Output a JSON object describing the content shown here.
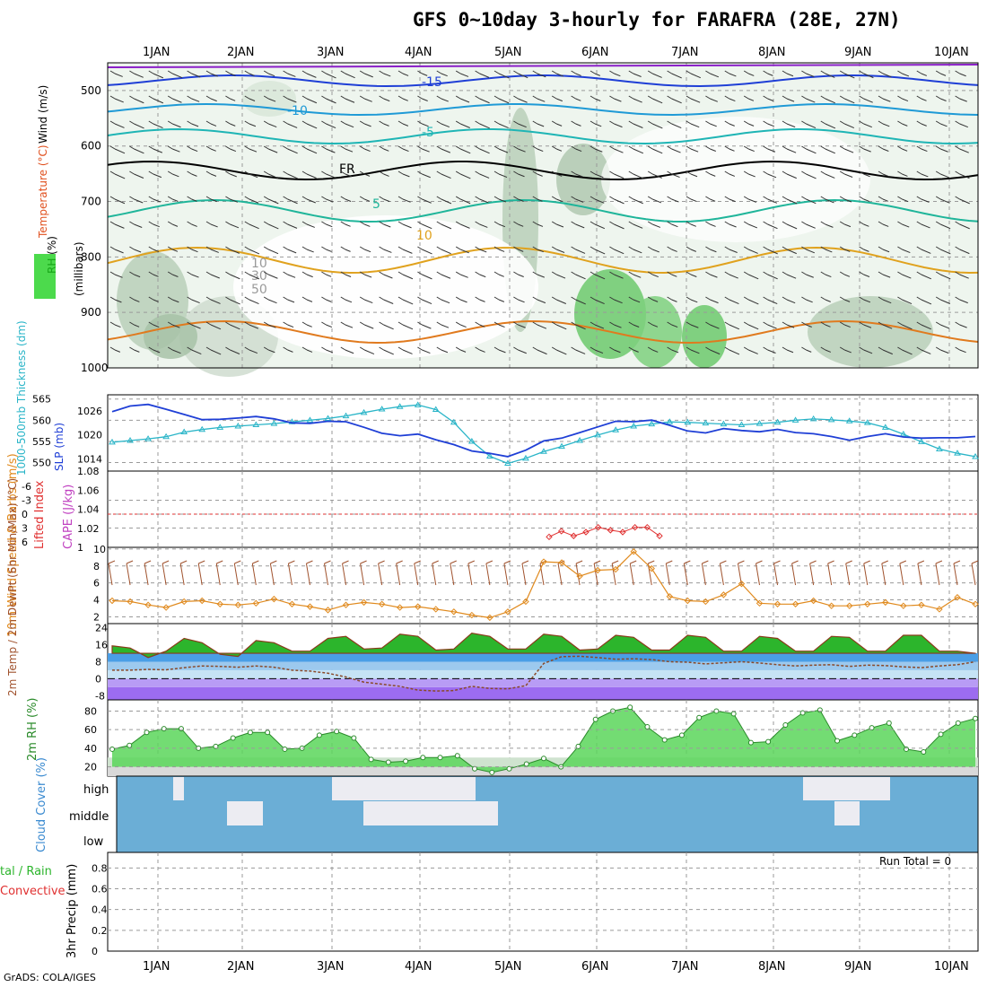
{
  "header": {
    "title": "GFS 0~10day 3-hourly for FARAFRA (28E, 27N)",
    "credit": "GrADS: COLA/IGES"
  },
  "colors": {
    "bg": "#ffffff",
    "rh_green": "#1fd11f",
    "temp_orange": "#e08a1e",
    "wind_brown": "#a0522d",
    "cloud_blue": "#6baed6",
    "slp_blue": "#1f3fd6",
    "thickness_cyan": "#2ab5c8"
  },
  "chart_data": [
    {
      "panel": "upper-air",
      "type": "heatmap",
      "x_dates": [
        "1JAN",
        "2JAN",
        "3JAN",
        "4JAN",
        "5JAN",
        "6JAN",
        "7JAN",
        "8JAN",
        "9JAN",
        "10JAN"
      ],
      "ylabel": "(millibars)",
      "y_ticks": [
        500,
        600,
        700,
        800,
        900,
        1000
      ],
      "ylim": [
        1000,
        450
      ],
      "axis_label_legend": [
        "RH (%)",
        "Temperature (°C)",
        "Wind (m/s)"
      ],
      "contour_labels": [
        "-15",
        "-10",
        "-5",
        "FR",
        "5",
        "10",
        "10",
        "30",
        "50"
      ]
    },
    {
      "panel": "thickness-slp",
      "type": "line",
      "ylabel_left": "1000-500mb Thickness (dm)",
      "ylabel_right": "SLP (mb)",
      "y_ticks_left": [
        550,
        555,
        560,
        565
      ],
      "y_ticks_right": [
        1014,
        1020,
        1026
      ],
      "series": [
        {
          "name": "Thickness",
          "values": [
            554.8,
            555.2,
            555.6,
            556.1,
            557.2,
            557.8,
            558.3,
            558.6,
            558.9,
            559.2,
            559.6,
            560,
            560.4,
            561,
            561.8,
            562.6,
            563.2,
            563.6,
            562.5,
            559.5,
            555,
            551.5,
            549.8,
            551,
            552.6,
            553.8,
            555.2,
            556.5,
            557.7,
            558.6,
            559.1,
            559.6,
            559.5,
            559.3,
            559.1,
            558.9,
            559.2,
            559.5,
            560,
            560.3,
            560.1,
            559.8,
            559.4,
            558.3,
            556.7,
            554.9,
            553.2,
            552.2,
            551.4
          ]
        },
        {
          "name": "SLP",
          "values": [
            1025.8,
            1027.2,
            1027.6,
            1026.4,
            1025.1,
            1023.8,
            1023.9,
            1024.2,
            1024.6,
            1024,
            1023,
            1022.9,
            1023.4,
            1023.3,
            1021.9,
            1020.4,
            1019.8,
            1020.2,
            1018.8,
            1017.6,
            1016,
            1015.4,
            1014.6,
            1016.2,
            1018.5,
            1019.2,
            1020.6,
            1022,
            1023.4,
            1023.3,
            1023.7,
            1022.4,
            1021,
            1020.5,
            1021.6,
            1021.1,
            1020.8,
            1021.4,
            1020.6,
            1020.3,
            1019.6,
            1018.7,
            1019.6,
            1020.3,
            1019.5,
            1019.2,
            1019.3,
            1019.3,
            1019.6
          ]
        }
      ]
    },
    {
      "panel": "instability",
      "type": "line",
      "ylabel_left": "Lifted Index",
      "ylabel_right": "CAPE (J/kg)",
      "y_ticks_left": [
        "-6",
        "-3",
        "0",
        "3",
        "6"
      ],
      "y_ticks_right": [
        "1",
        "1.02",
        "1.04",
        "1.06",
        "1.08"
      ],
      "series": [
        {
          "name": "CAPE",
          "values": [
            1.011,
            1.017,
            1.012,
            1.016,
            1.021,
            1.018,
            1.016,
            1.021,
            1.021,
            1.012
          ]
        }
      ]
    },
    {
      "panel": "10m-wind",
      "type": "line",
      "ylabel": "10m Wind Speed & Barbs (m/s)",
      "y_ticks": [
        2,
        4,
        6,
        8,
        10
      ],
      "series": [
        {
          "name": "Speed",
          "values": [
            3.9,
            3.8,
            3.4,
            3.1,
            3.8,
            3.9,
            3.5,
            3.4,
            3.6,
            4.1,
            3.5,
            3.2,
            2.8,
            3.4,
            3.7,
            3.5,
            3.1,
            3.2,
            2.9,
            2.6,
            2.2,
            1.9,
            2.6,
            3.8,
            8.5,
            8.4,
            6.8,
            7.5,
            7.6,
            9.7,
            7.7,
            4.4,
            3.9,
            3.8,
            4.6,
            5.9,
            3.6,
            3.5,
            3.5,
            3.9,
            3.3,
            3.3,
            3.5,
            3.7,
            3.3,
            3.4,
            2.9,
            4.3,
            3.5
          ]
        }
      ]
    },
    {
      "panel": "2m-temp",
      "type": "area",
      "ylabel": "2m Temp / 2m DewPt (6hr Min/Max) (°C)",
      "y_ticks": [
        "-8",
        "0",
        "8",
        "16",
        "24"
      ],
      "series": [
        {
          "name": "Temp",
          "values": [
            15.5,
            14.5,
            10,
            13,
            19,
            17,
            11.5,
            10.5,
            18,
            17,
            13,
            13,
            19,
            20,
            14,
            14.5,
            21,
            20,
            13.5,
            14,
            21.5,
            20,
            14,
            14,
            21,
            20,
            13.5,
            14,
            20.5,
            19.5,
            13.5,
            13.5,
            20.5,
            19.5,
            13,
            13,
            20,
            19,
            13,
            13,
            20,
            19.5,
            13,
            13,
            20.5,
            20.5,
            13,
            13,
            12
          ]
        },
        {
          "name": "DewPt",
          "values": [
            4,
            4,
            4.4,
            4.2,
            5.2,
            6,
            5.8,
            5.4,
            6,
            5.4,
            4,
            3.6,
            2.6,
            0.8,
            -1.6,
            -2.6,
            -3.6,
            -5.4,
            -5.8,
            -5.6,
            -3.6,
            -4.6,
            -4.8,
            -3.3,
            7.2,
            10.4,
            10.6,
            10,
            9.2,
            9.4,
            9,
            8,
            7.8,
            7,
            7.5,
            8,
            7.4,
            6.6,
            6,
            6.4,
            6.6,
            5.8,
            6.4,
            6.2,
            5.6,
            5.2,
            6,
            6.6,
            8
          ]
        }
      ]
    },
    {
      "panel": "2m-rh",
      "type": "area",
      "ylabel": "2m RH (%)",
      "y_ticks": [
        20,
        40,
        60,
        80
      ],
      "series": [
        {
          "name": "RH",
          "values": [
            39,
            43,
            57,
            61,
            61,
            40,
            42,
            51,
            57,
            57,
            39,
            40,
            54,
            58,
            51,
            28,
            25,
            26,
            30,
            30,
            32,
            18,
            14,
            18,
            23,
            29,
            20,
            42,
            71,
            80,
            84,
            63,
            49,
            54,
            73,
            80,
            77,
            46,
            47,
            65,
            78,
            81,
            48,
            54,
            62,
            67,
            39,
            36,
            55,
            67,
            72
          ]
        }
      ]
    },
    {
      "panel": "cloud-cover",
      "type": "heatmap",
      "ylabel": "Cloud Cover (%)",
      "y_ticks": [
        "high",
        "middle",
        "low"
      ]
    },
    {
      "panel": "precip",
      "type": "bar",
      "ylabel": "3hr Precip (mm)",
      "legend_left": [
        "tal / Rain",
        "Convective"
      ],
      "y_ticks": [
        0,
        0.2,
        0.4,
        0.6,
        0.8
      ],
      "run_total": "Run Total = 0",
      "values": []
    }
  ]
}
